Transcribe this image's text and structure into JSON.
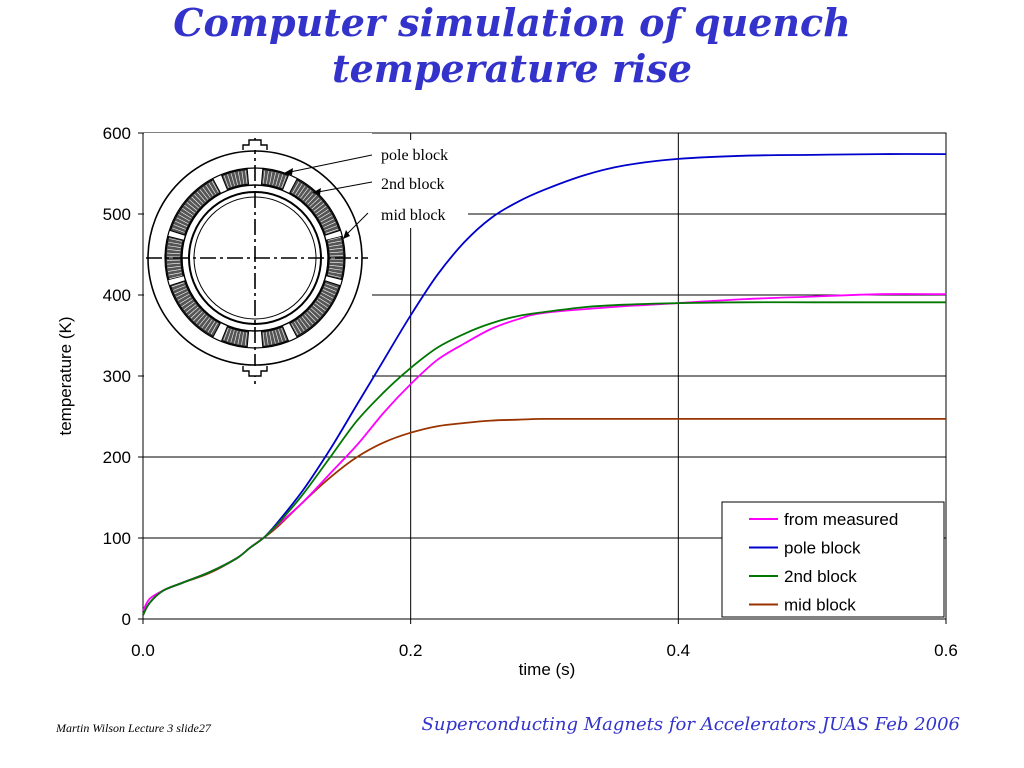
{
  "slide": {
    "title_line1": "Computer simulation of quench",
    "title_line2": "temperature rise",
    "footer_left": "Martin Wilson Lecture 3 slide27",
    "footer_right": "Superconducting Magnets for Accelerators JUAS Feb 2006"
  },
  "colors": {
    "title": "#3333cc",
    "from_measured": "#ff00ff",
    "pole_block": "#0000cc",
    "second_block": "#007700",
    "mid_block": "#993300"
  },
  "inset": {
    "labels": [
      "pole block",
      "2nd block",
      "mid block"
    ],
    "icon": "magnet-cross-section-diagram"
  },
  "chart_data": {
    "type": "line",
    "title": "",
    "xlabel": "time (s)",
    "ylabel": "temperature (K)",
    "xlim": [
      0,
      0.6
    ],
    "ylim": [
      0,
      600
    ],
    "xticks": [
      "0.0",
      "0.2",
      "0.4",
      "0.6"
    ],
    "yticks": [
      "0",
      "100",
      "200",
      "300",
      "400",
      "500",
      "600"
    ],
    "grid": "horizontal and vertical major gridlines",
    "legend_position": "bottom-right",
    "series": [
      {
        "name": "from measured",
        "color": "#ff00ff",
        "x": [
          0,
          0.005,
          0.015,
          0.03,
          0.05,
          0.07,
          0.08,
          0.09,
          0.1,
          0.12,
          0.14,
          0.16,
          0.18,
          0.2,
          0.22,
          0.24,
          0.26,
          0.28,
          0.3,
          0.35,
          0.4,
          0.45,
          0.5,
          0.55,
          0.6
        ],
        "y": [
          10,
          25,
          35,
          45,
          58,
          75,
          88,
          100,
          115,
          145,
          180,
          215,
          255,
          290,
          320,
          340,
          358,
          370,
          378,
          385,
          390,
          395,
          398,
          401,
          401
        ]
      },
      {
        "name": "pole block",
        "color": "#0000cc",
        "x": [
          0,
          0.005,
          0.015,
          0.03,
          0.05,
          0.07,
          0.08,
          0.09,
          0.1,
          0.12,
          0.14,
          0.16,
          0.18,
          0.2,
          0.22,
          0.24,
          0.26,
          0.28,
          0.3,
          0.33,
          0.36,
          0.4,
          0.45,
          0.5,
          0.55,
          0.6
        ],
        "y": [
          5,
          20,
          35,
          45,
          58,
          75,
          88,
          100,
          118,
          160,
          210,
          265,
          320,
          375,
          425,
          465,
          495,
          515,
          530,
          548,
          560,
          568,
          572,
          573,
          574,
          574
        ]
      },
      {
        "name": "2nd block",
        "color": "#007700",
        "x": [
          0,
          0.005,
          0.015,
          0.03,
          0.05,
          0.07,
          0.08,
          0.09,
          0.1,
          0.12,
          0.14,
          0.16,
          0.18,
          0.2,
          0.22,
          0.24,
          0.26,
          0.28,
          0.3,
          0.33,
          0.36,
          0.4,
          0.45,
          0.5,
          0.55,
          0.6
        ],
        "y": [
          5,
          20,
          35,
          45,
          58,
          75,
          88,
          100,
          116,
          155,
          200,
          245,
          280,
          310,
          335,
          352,
          365,
          374,
          379,
          385,
          388,
          390,
          391,
          391,
          391,
          391
        ]
      },
      {
        "name": "mid block",
        "color": "#993300",
        "x": [
          0,
          0.005,
          0.015,
          0.03,
          0.05,
          0.07,
          0.08,
          0.09,
          0.1,
          0.12,
          0.14,
          0.16,
          0.18,
          0.2,
          0.22,
          0.24,
          0.26,
          0.28,
          0.3,
          0.35,
          0.4,
          0.5,
          0.6
        ],
        "y": [
          5,
          20,
          35,
          45,
          57,
          75,
          88,
          100,
          113,
          145,
          175,
          200,
          218,
          230,
          238,
          242,
          245,
          246,
          247,
          247,
          247,
          247,
          247
        ]
      }
    ]
  }
}
